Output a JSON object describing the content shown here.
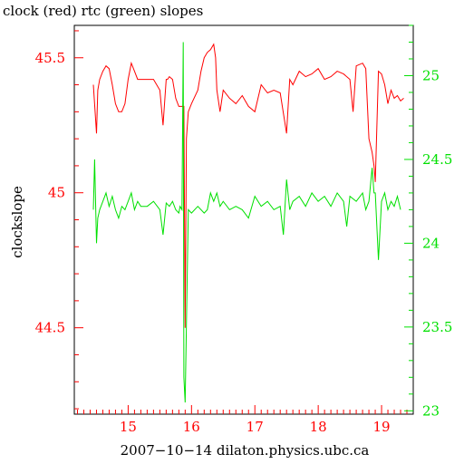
{
  "chart_data": {
    "type": "line",
    "title": "clock (red) rtc (green) slopes",
    "ylabel": "clockslope",
    "xlabel": "2007−10−14  dilaton.physics.ubc.ca",
    "xlim": [
      14.15,
      19.5
    ],
    "ylim_left": [
      44.18,
      45.62
    ],
    "ylim_right": [
      22.98,
      25.3
    ],
    "x_ticks": [
      "15",
      "16",
      "17",
      "18",
      "19"
    ],
    "y_ticks_left": [
      "44.5",
      "45",
      "45.5"
    ],
    "y_ticks_right": [
      "23",
      "23.5",
      "24",
      "24.5",
      "25"
    ],
    "colors": {
      "clock": "#ff0000",
      "rtc": "#00e000",
      "axes": "#000000"
    },
    "series": [
      {
        "axis": "left",
        "x": [
          14.45,
          14.5,
          14.52,
          14.55,
          14.6,
          14.65,
          14.7,
          14.75,
          14.8,
          14.85,
          14.9,
          14.95,
          15.0,
          15.05,
          15.1,
          15.15,
          15.2,
          15.3,
          15.4,
          15.5,
          15.55,
          15.6,
          15.62,
          15.65,
          15.7,
          15.75,
          15.8,
          15.85,
          15.88,
          15.9,
          15.92,
          15.95,
          16.0,
          16.1,
          16.15,
          16.2,
          16.25,
          16.3,
          16.35,
          16.38,
          16.4,
          16.45,
          16.5,
          16.6,
          16.7,
          16.8,
          16.9,
          17.0,
          17.1,
          17.2,
          17.3,
          17.4,
          17.5,
          17.55,
          17.6,
          17.7,
          17.8,
          17.9,
          18.0,
          18.1,
          18.2,
          18.3,
          18.4,
          18.5,
          18.55,
          18.6,
          18.7,
          18.75,
          18.8,
          18.85,
          18.88,
          18.9,
          18.95,
          19.0,
          19.05,
          19.1,
          19.15,
          19.2,
          19.25,
          19.3,
          19.35
        ],
        "y": [
          45.4,
          45.22,
          45.38,
          45.42,
          45.45,
          45.47,
          45.46,
          45.4,
          45.33,
          45.3,
          45.3,
          45.33,
          45.42,
          45.48,
          45.45,
          45.42,
          45.42,
          45.42,
          45.42,
          45.38,
          45.25,
          45.42,
          45.42,
          45.43,
          45.42,
          45.35,
          45.32,
          45.32,
          45.32,
          44.5,
          45.2,
          45.3,
          45.33,
          45.38,
          45.45,
          45.5,
          45.52,
          45.53,
          45.55,
          45.5,
          45.38,
          45.3,
          45.38,
          45.35,
          45.33,
          45.36,
          45.32,
          45.3,
          45.4,
          45.37,
          45.38,
          45.37,
          45.22,
          45.42,
          45.4,
          45.45,
          45.43,
          45.44,
          45.46,
          45.42,
          45.43,
          45.45,
          45.44,
          45.42,
          45.3,
          45.47,
          45.48,
          45.46,
          45.2,
          45.15,
          45.1,
          45.04,
          45.45,
          45.44,
          45.4,
          45.33,
          45.38,
          45.35,
          45.36,
          45.34,
          45.35
        ]
      },
      {
        "axis": "right",
        "x": [
          14.45,
          14.47,
          14.5,
          14.52,
          14.55,
          14.6,
          14.65,
          14.7,
          14.75,
          14.8,
          14.85,
          14.9,
          14.95,
          15.0,
          15.05,
          15.1,
          15.15,
          15.2,
          15.3,
          15.4,
          15.5,
          15.55,
          15.6,
          15.65,
          15.7,
          15.75,
          15.8,
          15.82,
          15.85,
          15.87,
          15.88,
          15.9,
          15.95,
          16.0,
          16.1,
          16.2,
          16.25,
          16.3,
          16.35,
          16.4,
          16.45,
          16.5,
          16.6,
          16.7,
          16.8,
          16.9,
          17.0,
          17.1,
          17.2,
          17.3,
          17.4,
          17.45,
          17.5,
          17.55,
          17.6,
          17.7,
          17.8,
          17.9,
          18.0,
          18.1,
          18.2,
          18.3,
          18.4,
          18.45,
          18.5,
          18.6,
          18.7,
          18.75,
          18.8,
          18.85,
          18.88,
          18.9,
          18.95,
          19.0,
          19.05,
          19.1,
          19.15,
          19.2,
          19.25,
          19.3
        ],
        "y": [
          24.2,
          24.5,
          24.0,
          24.15,
          24.2,
          24.25,
          24.3,
          24.22,
          24.28,
          24.2,
          24.15,
          24.22,
          24.2,
          24.25,
          24.3,
          24.2,
          24.25,
          24.22,
          24.22,
          24.25,
          24.2,
          24.05,
          24.24,
          24.22,
          24.25,
          24.2,
          24.18,
          24.22,
          24.2,
          25.2,
          23.2,
          23.05,
          24.2,
          24.18,
          24.22,
          24.18,
          24.2,
          24.3,
          24.25,
          24.3,
          24.22,
          24.25,
          24.2,
          24.22,
          24.2,
          24.15,
          24.28,
          24.22,
          24.25,
          24.2,
          24.22,
          24.05,
          24.38,
          24.2,
          24.25,
          24.28,
          24.22,
          24.3,
          24.25,
          24.28,
          24.22,
          24.3,
          24.25,
          24.1,
          24.28,
          24.25,
          24.3,
          24.2,
          24.25,
          24.45,
          24.3,
          24.3,
          23.9,
          24.25,
          24.3,
          24.2,
          24.25,
          24.22,
          24.28,
          24.2
        ]
      }
    ]
  }
}
